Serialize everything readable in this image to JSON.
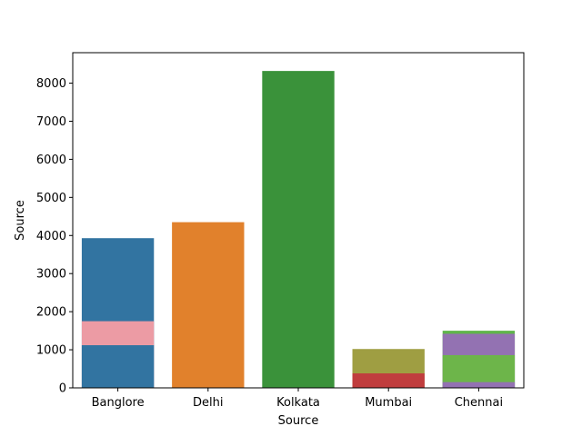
{
  "chart_data": {
    "type": "bar",
    "title": "",
    "xlabel": "Source",
    "ylabel": "Source",
    "categories": [
      "Banglore",
      "Delhi",
      "Kolkata",
      "Mumbai",
      "Chennai"
    ],
    "ylim": [
      0,
      8800
    ],
    "yticks": [
      0,
      1000,
      2000,
      3000,
      4000,
      5000,
      6000,
      7000,
      8000
    ],
    "grid": false,
    "legend": "none",
    "bars": [
      {
        "category": "Banglore",
        "value": 3930,
        "color": "#3274a1"
      },
      {
        "category": "Banglore",
        "value": 1750,
        "color": "#ec9ba4"
      },
      {
        "category": "Banglore",
        "value": 1120,
        "color": "#3274a1"
      },
      {
        "category": "Delhi",
        "value": 4350,
        "color": "#e1812c"
      },
      {
        "category": "Kolkata",
        "value": 8320,
        "color": "#3a923a"
      },
      {
        "category": "Mumbai",
        "value": 1020,
        "color": "#9f9e42"
      },
      {
        "category": "Mumbai",
        "value": 380,
        "color": "#c03d3e"
      },
      {
        "category": "Chennai",
        "value": 1500,
        "color": "#5fb54b"
      },
      {
        "category": "Chennai",
        "value": 1420,
        "color": "#9372b2"
      },
      {
        "category": "Chennai",
        "value": 860,
        "color": "#6db54a"
      },
      {
        "category": "Chennai",
        "value": 150,
        "color": "#9372b2"
      }
    ]
  }
}
